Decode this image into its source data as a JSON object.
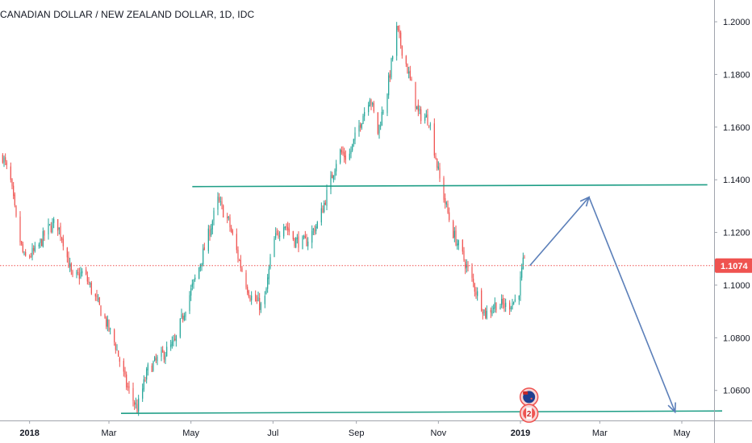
{
  "header": {
    "title": "CANADIAN DOLLAR / NEW ZEALAND DOLLAR, 1D, IDC"
  },
  "colors": {
    "up": "#26a69a",
    "down": "#ef5350",
    "trendline": "#1e9e86",
    "projection": "#5b7fb9",
    "current_price_line": "#ef5350",
    "price_badge": "#ef5350",
    "axis_text": "#131722",
    "axis_line": "#a0a4ad"
  },
  "events": [
    {
      "name": "nz-flag-event",
      "icon": "new-zealand-flag-icon",
      "label": ""
    },
    {
      "name": "ca-flag-event",
      "icon": "canada-flag-icon",
      "label": "2"
    }
  ],
  "chart_data": {
    "type": "candlestick",
    "title": "CANADIAN DOLLAR / NEW ZEALAND DOLLAR, 1D, IDC",
    "xlim": [
      "2017-12-10",
      "2019-05-25"
    ],
    "ylim": [
      1.0486,
      1.2046
    ],
    "y_ticks": [
      "1.2000",
      "1.1800",
      "1.1600",
      "1.1400",
      "1.1200",
      "1.1000",
      "1.0800",
      "1.0600"
    ],
    "y_tick_values": [
      1.2,
      1.18,
      1.16,
      1.14,
      1.12,
      1.1,
      1.08,
      1.06
    ],
    "x_ticks": [
      "2018",
      "Mar",
      "May",
      "Jul",
      "Sep",
      "Nov",
      "2019",
      "Mar",
      "May"
    ],
    "x_tick_dates": [
      "2018-01-01",
      "2018-03-01",
      "2018-05-01",
      "2018-07-01",
      "2018-09-01",
      "2018-11-01",
      "2019-01-01",
      "2019-03-01",
      "2019-05-01"
    ],
    "current_price": 1.1074,
    "current_price_label": "1.1074",
    "price_path": [
      [
        "2017-12-12",
        1.149
      ],
      [
        "2017-12-18",
        1.139
      ],
      [
        "2017-12-23",
        1.121
      ],
      [
        "2017-12-28",
        1.11
      ],
      [
        "2018-01-06",
        1.113
      ],
      [
        "2018-01-14",
        1.121
      ],
      [
        "2018-01-21",
        1.124
      ],
      [
        "2018-01-26",
        1.117
      ],
      [
        "2018-02-02",
        1.102
      ],
      [
        "2018-02-10",
        1.105
      ],
      [
        "2018-02-18",
        1.096
      ],
      [
        "2018-02-26",
        1.087
      ],
      [
        "2018-03-06",
        1.077
      ],
      [
        "2018-03-14",
        1.062
      ],
      [
        "2018-03-22",
        1.053
      ],
      [
        "2018-03-30",
        1.068
      ],
      [
        "2018-04-09",
        1.073
      ],
      [
        "2018-04-19",
        1.078
      ],
      [
        "2018-04-27",
        1.092
      ],
      [
        "2018-05-06",
        1.105
      ],
      [
        "2018-05-14",
        1.119
      ],
      [
        "2018-05-21",
        1.132
      ],
      [
        "2018-05-29",
        1.124
      ],
      [
        "2018-06-06",
        1.109
      ],
      [
        "2018-06-14",
        1.096
      ],
      [
        "2018-06-24",
        1.091
      ],
      [
        "2018-07-01",
        1.116
      ],
      [
        "2018-07-09",
        1.124
      ],
      [
        "2018-07-17",
        1.117
      ],
      [
        "2018-07-25",
        1.116
      ],
      [
        "2018-08-04",
        1.124
      ],
      [
        "2018-08-12",
        1.138
      ],
      [
        "2018-08-19",
        1.151
      ],
      [
        "2018-08-26",
        1.148
      ],
      [
        "2018-09-04",
        1.162
      ],
      [
        "2018-09-11",
        1.172
      ],
      [
        "2018-09-17",
        1.158
      ],
      [
        "2018-09-24",
        1.174
      ],
      [
        "2018-10-01",
        1.197
      ],
      [
        "2018-10-08",
        1.184
      ],
      [
        "2018-10-17",
        1.165
      ],
      [
        "2018-10-25",
        1.163
      ],
      [
        "2018-11-02",
        1.14
      ],
      [
        "2018-11-11",
        1.121
      ],
      [
        "2018-11-19",
        1.111
      ],
      [
        "2018-11-28",
        1.099
      ],
      [
        "2018-12-06",
        1.089
      ],
      [
        "2018-12-14",
        1.093
      ],
      [
        "2018-12-22",
        1.092
      ],
      [
        "2018-12-30",
        1.095
      ],
      [
        "2019-01-03",
        1.108
      ],
      [
        "2019-01-06",
        1.1074
      ]
    ],
    "trendlines": [
      {
        "name": "resistance",
        "from": [
          "2018-05-02",
          1.1374
        ],
        "to": [
          "2019-05-20",
          1.1381
        ]
      },
      {
        "name": "support",
        "from": [
          "2018-03-10",
          1.0513
        ],
        "to": [
          "2019-05-31",
          1.0522
        ]
      }
    ],
    "projection": {
      "name": "forecast-path",
      "points": [
        [
          "2019-01-08",
          1.1074
        ],
        [
          "2019-02-21",
          1.1334
        ],
        [
          "2019-04-26",
          1.0518
        ]
      ]
    }
  }
}
